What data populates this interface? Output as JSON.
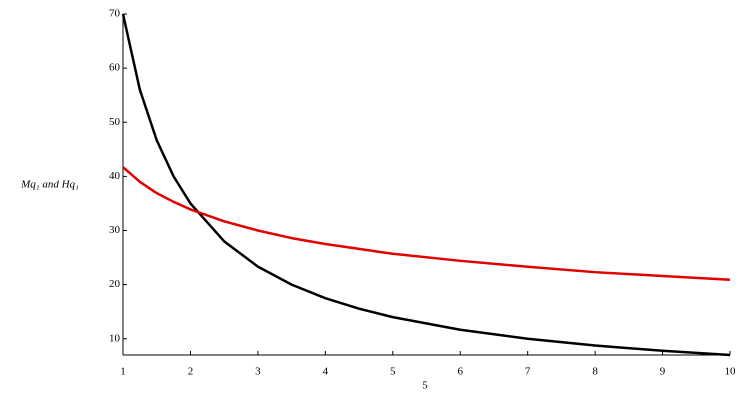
{
  "chart_data": {
    "type": "line",
    "y_label": "Mq₁ and Hq₁",
    "x_label": "5",
    "x": [
      1,
      1.25,
      1.5,
      1.75,
      2,
      2.5,
      3,
      3.5,
      4,
      4.5,
      5,
      6,
      7,
      8,
      9,
      10
    ],
    "series": [
      {
        "color": "#000000",
        "values": [
          70,
          56,
          46.67,
          40,
          35,
          28,
          23.33,
          20,
          17.5,
          15.56,
          14,
          11.67,
          10,
          8.75,
          7.78,
          7
        ]
      },
      {
        "color": "#e00000",
        "values": [
          41.7,
          39.0,
          36.9,
          35.3,
          33.9,
          31.7,
          30.0,
          28.6,
          27.5,
          26.6,
          25.7,
          24.4,
          23.3,
          22.3,
          21.6,
          20.9
        ]
      }
    ],
    "xlim": [
      1,
      10
    ],
    "xticks": [
      1,
      2,
      3,
      4,
      5,
      6,
      7,
      8,
      9,
      10
    ],
    "ylim": [
      7,
      70
    ],
    "yticks": [
      10,
      20,
      30,
      40,
      50,
      60,
      70
    ]
  }
}
